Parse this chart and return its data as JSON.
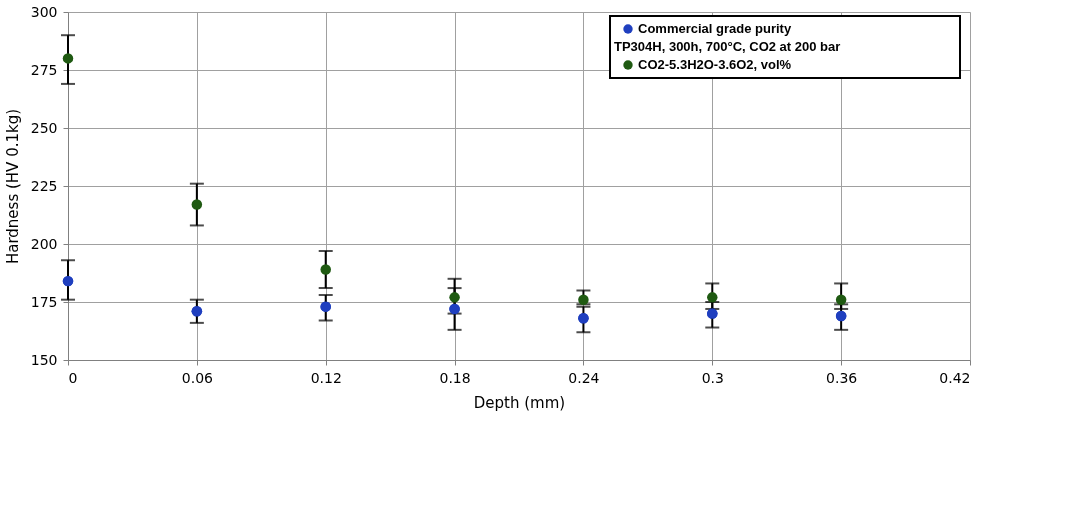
{
  "chart_data": {
    "type": "scatter",
    "xlabel": "Depth (mm)",
    "ylabel": "Hardness (HV 0.1kg)",
    "x": [
      0,
      0.06,
      0.12,
      0.18,
      0.24,
      0.3,
      0.36
    ],
    "series": [
      {
        "name": "Commercial grade purity",
        "color": "#1f3fbf",
        "values": [
          184,
          171,
          173,
          172,
          168,
          170,
          169
        ],
        "errors": [
          [
            176,
            193
          ],
          [
            166,
            176
          ],
          [
            167,
            178
          ],
          [
            163,
            181
          ],
          [
            162,
            173
          ],
          [
            164,
            175
          ],
          [
            163,
            174
          ]
        ]
      },
      {
        "name": "CO2-5.3H2O-3.6O2, vol%",
        "color": "#1f5a12",
        "values": [
          280,
          217,
          189,
          177,
          176,
          177,
          176
        ],
        "errors": [
          [
            269,
            290
          ],
          [
            208,
            226
          ],
          [
            181,
            197
          ],
          [
            170,
            185
          ],
          [
            174,
            180
          ],
          [
            172,
            183
          ],
          [
            172,
            183
          ]
        ]
      }
    ],
    "annotations": [
      "TP304H, 300h, 700°C, CO2 at 200 bar"
    ],
    "xlim": [
      0,
      0.42
    ],
    "xticks": [
      0,
      0.06,
      0.12,
      0.18,
      0.24,
      0.3,
      0.36,
      0.42
    ],
    "ylim": [
      150,
      300
    ],
    "yticks": [
      150,
      175,
      200,
      225,
      250,
      275,
      300
    ],
    "grid": true,
    "legend": "top right",
    "marker": "circle"
  }
}
